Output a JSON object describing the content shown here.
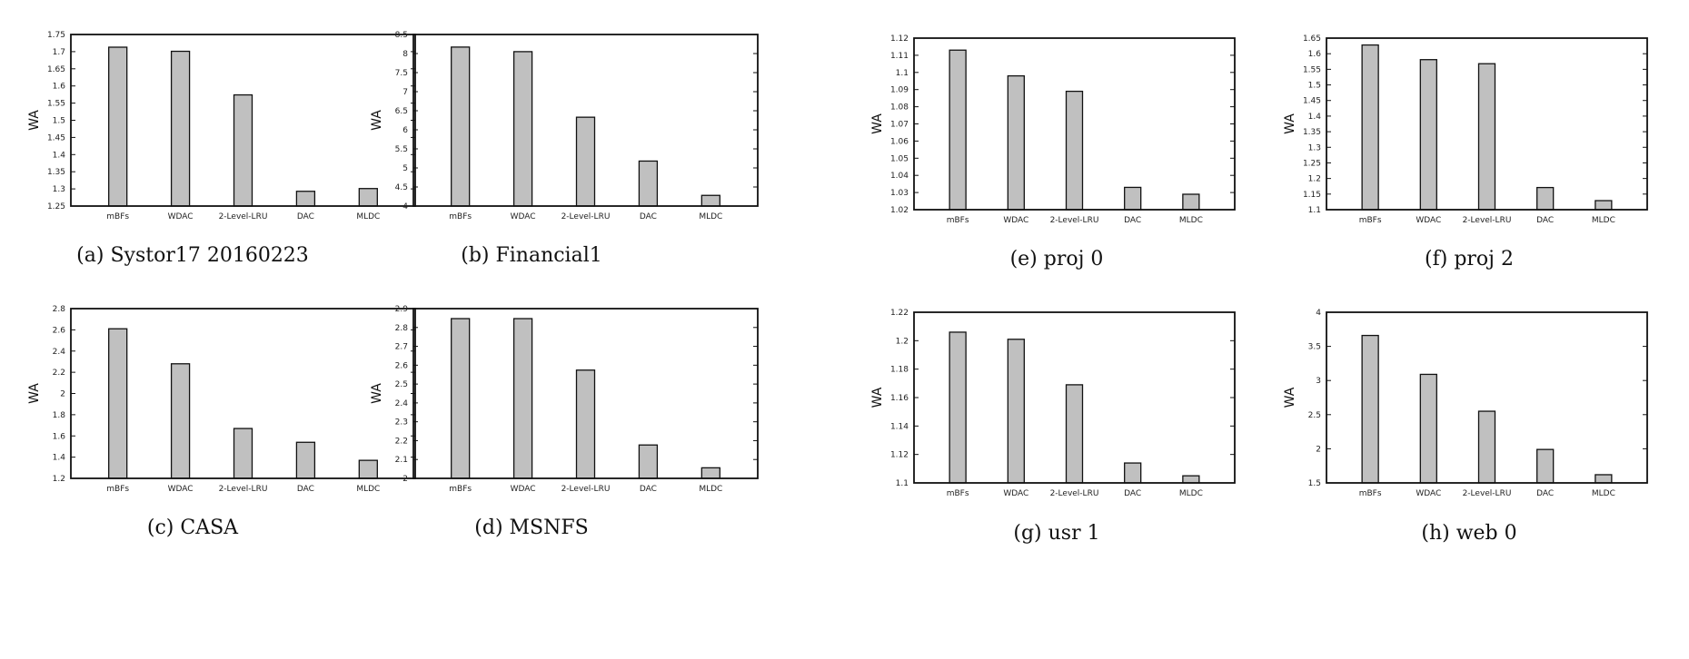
{
  "chart_data": [
    {
      "id": "a",
      "type": "bar",
      "caption": "(a)  Systor17 20160223",
      "ylabel": "WA",
      "categories": [
        "mBFs",
        "WDAC",
        "2-Level-LRU",
        "DAC",
        "MLDC"
      ],
      "values": [
        1.713,
        1.701,
        1.574,
        1.293,
        1.301
      ],
      "ylim": [
        1.25,
        1.75
      ],
      "yticks": [
        "1.25",
        "1.3",
        "1.35",
        "1.4",
        "1.45",
        "1.5",
        "1.55",
        "1.6",
        "1.65",
        "1.7",
        "1.75"
      ]
    },
    {
      "id": "b",
      "type": "bar",
      "caption": "(b)  Financial1",
      "ylabel": "WA",
      "categories": [
        "mBFs",
        "WDAC",
        "2-Level-LRU",
        "DAC",
        "MLDC"
      ],
      "values": [
        8.17,
        8.05,
        6.33,
        5.18,
        4.28
      ],
      "ylim": [
        4,
        8.5
      ],
      "yticks": [
        "4",
        "4.5",
        "5",
        "5.5",
        "6",
        "6.5",
        "7",
        "7.5",
        "8",
        "8.5"
      ]
    },
    {
      "id": "e",
      "type": "bar",
      "caption": "(e)  proj 0",
      "ylabel": "WA",
      "categories": [
        "mBFs",
        "WDAC",
        "2-Level-LRU",
        "DAC",
        "MLDC"
      ],
      "values": [
        1.113,
        1.098,
        1.089,
        1.033,
        1.029
      ],
      "ylim": [
        1.02,
        1.12
      ],
      "yticks": [
        "1.02",
        "1.03",
        "1.04",
        "1.05",
        "1.06",
        "1.07",
        "1.08",
        "1.09",
        "1.1",
        "1.11",
        "1.12"
      ]
    },
    {
      "id": "f",
      "type": "bar",
      "caption": "(f)  proj 2",
      "ylabel": "WA",
      "categories": [
        "mBFs",
        "WDAC",
        "2-Level-LRU",
        "DAC",
        "MLDC"
      ],
      "values": [
        1.628,
        1.581,
        1.568,
        1.171,
        1.129
      ],
      "ylim": [
        1.1,
        1.65
      ],
      "yticks": [
        "1.1",
        "1.15",
        "1.2",
        "1.25",
        "1.3",
        "1.35",
        "1.4",
        "1.45",
        "1.5",
        "1.55",
        "1.6",
        "1.65"
      ]
    },
    {
      "id": "c",
      "type": "bar",
      "caption": "(c)  CASA",
      "ylabel": "WA",
      "categories": [
        "mBFs",
        "WDAC",
        "2-Level-LRU",
        "DAC",
        "MLDC"
      ],
      "values": [
        2.61,
        2.28,
        1.67,
        1.54,
        1.37
      ],
      "ylim": [
        1.2,
        2.8
      ],
      "yticks": [
        "1.2",
        "1.4",
        "1.6",
        "1.8",
        "2",
        "2.2",
        "2.4",
        "2.6",
        "2.8"
      ]
    },
    {
      "id": "d",
      "type": "bar",
      "caption": "(d)  MSNFS",
      "ylabel": "WA",
      "categories": [
        "mBFs",
        "WDAC",
        "2-Level-LRU",
        "DAC",
        "MLDC"
      ],
      "values": [
        2.847,
        2.847,
        2.574,
        2.177,
        2.056
      ],
      "ylim": [
        2,
        2.9
      ],
      "yticks": [
        "2",
        "2.1",
        "2.2",
        "2.3",
        "2.4",
        "2.5",
        "2.6",
        "2.7",
        "2.8",
        "2.9"
      ]
    },
    {
      "id": "g",
      "type": "bar",
      "caption": "(g)  usr 1",
      "ylabel": "WA",
      "categories": [
        "mBFs",
        "WDAC",
        "2-Level-LRU",
        "DAC",
        "MLDC"
      ],
      "values": [
        1.206,
        1.201,
        1.169,
        1.114,
        1.105
      ],
      "ylim": [
        1.1,
        1.22
      ],
      "yticks": [
        "1.1",
        "1.12",
        "1.14",
        "1.16",
        "1.18",
        "1.2",
        "1.22"
      ]
    },
    {
      "id": "h",
      "type": "bar",
      "caption": "(h)  web 0",
      "ylabel": "WA",
      "categories": [
        "mBFs",
        "WDAC",
        "2-Level-LRU",
        "DAC",
        "MLDC"
      ],
      "values": [
        3.66,
        3.09,
        2.55,
        1.99,
        1.62
      ],
      "ylim": [
        1.5,
        4
      ],
      "yticks": [
        "1.5",
        "2",
        "2.5",
        "3",
        "3.5",
        "4"
      ]
    }
  ],
  "colors": {
    "bar_fill": "#c0c0c0",
    "bar_stroke": "#111111"
  }
}
